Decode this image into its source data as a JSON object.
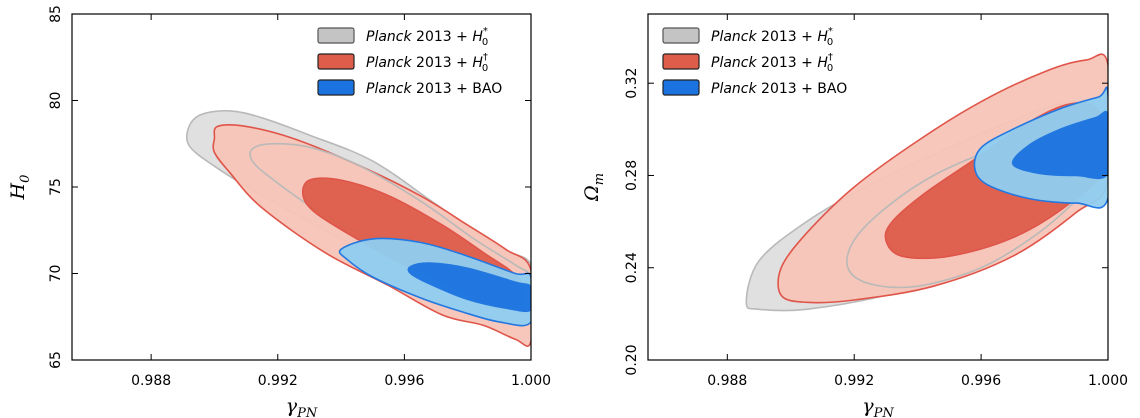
{
  "colors": {
    "grey_outer": "#dedede",
    "grey_inner": "#c4c4c4",
    "grey_line": "#b9b9b9",
    "red_outer": "#f6c4b6",
    "red_inner": "#dd5d4a",
    "red_line": "#e0554a",
    "blue_outer": "#8fcdf0",
    "blue_inner": "#1a73de",
    "blue_line": "#2277e0"
  },
  "chart_data": [
    {
      "type": "contour",
      "xlabel": "γPN",
      "ylabel": "H0",
      "xlim": [
        0.9855,
        1.0
      ],
      "ylim": [
        65,
        85
      ],
      "xticks": [
        0.988,
        0.992,
        0.996,
        1.0
      ],
      "xtick_labels": [
        "0.988",
        "0.992",
        "0.996",
        "1.000"
      ],
      "yticks": [
        65,
        70,
        75,
        80,
        85
      ],
      "ytick_labels": [
        "65",
        "70",
        "75",
        "80",
        "85"
      ],
      "legend": {
        "placement": "top-right",
        "entries": [
          {
            "italic": "Planck",
            "text": " 2013 + ",
            "sym": "H",
            "sub": "0",
            "sup": "*",
            "color_key": "grey_inner"
          },
          {
            "italic": "Planck",
            "text": " 2013 + ",
            "sym": "H",
            "sub": "0",
            "sup": "†",
            "color_key": "red_inner"
          },
          {
            "italic": "Planck",
            "text": " 2013 + BAO",
            "sym": "",
            "sub": "",
            "sup": "",
            "color_key": "blue_inner"
          }
        ]
      },
      "series": [
        {
          "id": "grey_outer",
          "fill": "grey_outer",
          "stroke": "grey_line",
          "points": [
            [
              0.9892,
              78.5
            ],
            [
              0.9896,
              79.2
            ],
            [
              0.9905,
              79.4
            ],
            [
              0.9915,
              79.0
            ],
            [
              0.993,
              78.0
            ],
            [
              0.995,
              76.5
            ],
            [
              0.997,
              74.0
            ],
            [
              0.999,
              71.5
            ],
            [
              1.0,
              70.5
            ],
            [
              1.0,
              67.5
            ],
            [
              0.999,
              67.5
            ],
            [
              0.9975,
              68.8
            ],
            [
              0.9955,
              70.5
            ],
            [
              0.9935,
              72.5
            ],
            [
              0.9915,
              74.5
            ],
            [
              0.99,
              76.2
            ],
            [
              0.9892,
              77.4
            ]
          ]
        },
        {
          "id": "red_outer",
          "fill": "red_outer",
          "stroke": "red_line",
          "points": [
            [
              0.99,
              77.8
            ],
            [
              0.9901,
              78.5
            ],
            [
              0.991,
              78.5
            ],
            [
              0.9925,
              77.8
            ],
            [
              0.9945,
              76.3
            ],
            [
              0.9965,
              74.5
            ],
            [
              0.998,
              72.8
            ],
            [
              0.9992,
              71.4
            ],
            [
              1.0,
              70.2
            ],
            [
              1.0,
              66.1
            ],
            [
              0.9995,
              66.2
            ],
            [
              0.9985,
              67.0
            ],
            [
              0.9972,
              67.6
            ],
            [
              0.9955,
              69.3
            ],
            [
              0.9935,
              71.2
            ],
            [
              0.9915,
              73.8
            ],
            [
              0.9905,
              75.8
            ],
            [
              0.99,
              77.0
            ]
          ]
        },
        {
          "id": "grey_inner",
          "fill": "none",
          "stroke": "grey_line",
          "points": [
            [
              0.9912,
              77.2
            ],
            [
              0.9918,
              77.5
            ],
            [
              0.993,
              77.3
            ],
            [
              0.9945,
              76.3
            ],
            [
              0.9965,
              74.2
            ],
            [
              0.9982,
              72.0
            ],
            [
              0.9995,
              70.5
            ],
            [
              1.0,
              69.8
            ],
            [
              0.9998,
              68.3
            ],
            [
              0.9988,
              68.8
            ],
            [
              0.9972,
              70.2
            ],
            [
              0.9952,
              71.8
            ],
            [
              0.9932,
              73.7
            ],
            [
              0.9918,
              75.5
            ],
            [
              0.9912,
              76.5
            ]
          ]
        },
        {
          "id": "red_inner",
          "fill": "red_inner",
          "stroke": "red_line",
          "points": [
            [
              0.9928,
              74.5
            ],
            [
              0.993,
              75.4
            ],
            [
              0.994,
              75.4
            ],
            [
              0.9955,
              74.5
            ],
            [
              0.9972,
              72.8
            ],
            [
              0.9985,
              71.2
            ],
            [
              0.9995,
              69.9
            ],
            [
              0.9998,
              68.5
            ],
            [
              0.999,
              68.0
            ],
            [
              0.9978,
              68.9
            ],
            [
              0.9962,
              70.3
            ],
            [
              0.9945,
              72.0
            ],
            [
              0.9932,
              73.5
            ]
          ]
        },
        {
          "id": "blue_outer",
          "fill": "blue_outer",
          "stroke": "blue_line",
          "points": [
            [
              0.994,
              71.4
            ],
            [
              0.995,
              72.0
            ],
            [
              0.9965,
              71.8
            ],
            [
              0.998,
              71.0
            ],
            [
              0.9995,
              70.0
            ],
            [
              1.0,
              69.8
            ],
            [
              1.0,
              67.2
            ],
            [
              0.999,
              67.2
            ],
            [
              0.9978,
              67.8
            ],
            [
              0.9965,
              68.6
            ],
            [
              0.995,
              69.8
            ],
            [
              0.9942,
              70.8
            ]
          ]
        },
        {
          "id": "blue_inner",
          "fill": "blue_inner",
          "stroke": "blue_line",
          "points": [
            [
              0.9962,
              70.4
            ],
            [
              0.9968,
              70.6
            ],
            [
              0.998,
              70.3
            ],
            [
              0.9995,
              69.5
            ],
            [
              1.0,
              69.2
            ],
            [
              1.0,
              67.9
            ],
            [
              0.9992,
              68.0
            ],
            [
              0.998,
              68.5
            ],
            [
              0.9968,
              69.4
            ],
            [
              0.9962,
              70.0
            ]
          ]
        }
      ]
    },
    {
      "type": "contour",
      "xlabel": "γPN",
      "ylabel": "Ωm",
      "xlim": [
        0.9855,
        1.0
      ],
      "ylim": [
        0.2,
        0.35
      ],
      "xticks": [
        0.988,
        0.992,
        0.996,
        1.0
      ],
      "xtick_labels": [
        "0.988",
        "0.992",
        "0.996",
        "1.000"
      ],
      "yticks": [
        0.2,
        0.24,
        0.28,
        0.32
      ],
      "ytick_labels": [
        "0.20",
        "0.24",
        "0.28",
        "0.32"
      ],
      "legend": {
        "placement": "top-left",
        "entries": [
          {
            "italic": "Planck",
            "text": " 2013 + ",
            "sym": "H",
            "sub": "0",
            "sup": "*",
            "color_key": "grey_inner"
          },
          {
            "italic": "Planck",
            "text": " 2013 + ",
            "sym": "H",
            "sub": "0",
            "sup": "†",
            "color_key": "red_inner"
          },
          {
            "italic": "Planck",
            "text": " 2013 + BAO",
            "sym": "",
            "sub": "",
            "sup": "",
            "color_key": "blue_inner"
          }
        ]
      },
      "series": [
        {
          "id": "grey_outer",
          "fill": "grey_outer",
          "stroke": "grey_line",
          "points": [
            [
              0.9886,
              0.225
            ],
            [
              0.989,
              0.222
            ],
            [
              0.9905,
              0.222
            ],
            [
              0.993,
              0.228
            ],
            [
              0.9955,
              0.238
            ],
            [
              0.9975,
              0.255
            ],
            [
              0.999,
              0.275
            ],
            [
              1.0,
              0.29
            ],
            [
              1.0,
              0.31
            ],
            [
              0.9985,
              0.311
            ],
            [
              0.9965,
              0.301
            ],
            [
              0.9945,
              0.289
            ],
            [
              0.9925,
              0.276
            ],
            [
              0.9905,
              0.26
            ],
            [
              0.989,
              0.243
            ]
          ]
        },
        {
          "id": "red_outer",
          "fill": "red_outer",
          "stroke": "red_line",
          "points": [
            [
              0.9897,
              0.228
            ],
            [
              0.9905,
              0.225
            ],
            [
              0.992,
              0.226
            ],
            [
              0.9945,
              0.232
            ],
            [
              0.997,
              0.245
            ],
            [
              0.999,
              0.264
            ],
            [
              1.0,
              0.278
            ],
            [
              1.0,
              0.328
            ],
            [
              0.9993,
              0.33
            ],
            [
              0.998,
              0.325
            ],
            [
              0.996,
              0.312
            ],
            [
              0.994,
              0.295
            ],
            [
              0.992,
              0.275
            ],
            [
              0.9905,
              0.255
            ],
            [
              0.9897,
              0.24
            ]
          ]
        },
        {
          "id": "grey_inner",
          "fill": "none",
          "stroke": "grey_line",
          "points": [
            [
              0.9918,
              0.24
            ],
            [
              0.9925,
              0.233
            ],
            [
              0.994,
              0.232
            ],
            [
              0.996,
              0.24
            ],
            [
              0.9978,
              0.255
            ],
            [
              0.9992,
              0.272
            ],
            [
              1.0,
              0.285
            ],
            [
              0.9998,
              0.3
            ],
            [
              0.9985,
              0.301
            ],
            [
              0.9965,
              0.292
            ],
            [
              0.9945,
              0.28
            ],
            [
              0.993,
              0.266
            ],
            [
              0.992,
              0.252
            ]
          ]
        },
        {
          "id": "red_inner",
          "fill": "red_inner",
          "stroke": "red_line",
          "points": [
            [
              0.993,
              0.252
            ],
            [
              0.9935,
              0.245
            ],
            [
              0.995,
              0.245
            ],
            [
              0.997,
              0.253
            ],
            [
              0.9988,
              0.268
            ],
            [
              1.0,
              0.285
            ],
            [
              0.9997,
              0.308
            ],
            [
              0.9988,
              0.311
            ],
            [
              0.9975,
              0.303
            ],
            [
              0.9958,
              0.287
            ],
            [
              0.9942,
              0.272
            ],
            [
              0.9932,
              0.26
            ]
          ]
        },
        {
          "id": "blue_outer",
          "fill": "blue_outer",
          "stroke": "blue_line",
          "points": [
            [
              0.9958,
              0.283
            ],
            [
              0.996,
              0.292
            ],
            [
              0.997,
              0.3
            ],
            [
              0.9985,
              0.309
            ],
            [
              0.9997,
              0.314
            ],
            [
              1.0,
              0.315
            ],
            [
              1.0,
              0.27
            ],
            [
              0.999,
              0.268
            ],
            [
              0.9975,
              0.27
            ],
            [
              0.9962,
              0.276
            ]
          ]
        },
        {
          "id": "blue_inner",
          "fill": "blue_inner",
          "stroke": "blue_line",
          "points": [
            [
              0.997,
              0.285
            ],
            [
              0.9975,
              0.293
            ],
            [
              0.9985,
              0.3
            ],
            [
              0.9996,
              0.305
            ],
            [
              1.0,
              0.306
            ],
            [
              1.0,
              0.281
            ],
            [
              0.999,
              0.28
            ],
            [
              0.9978,
              0.281
            ]
          ]
        }
      ]
    }
  ]
}
